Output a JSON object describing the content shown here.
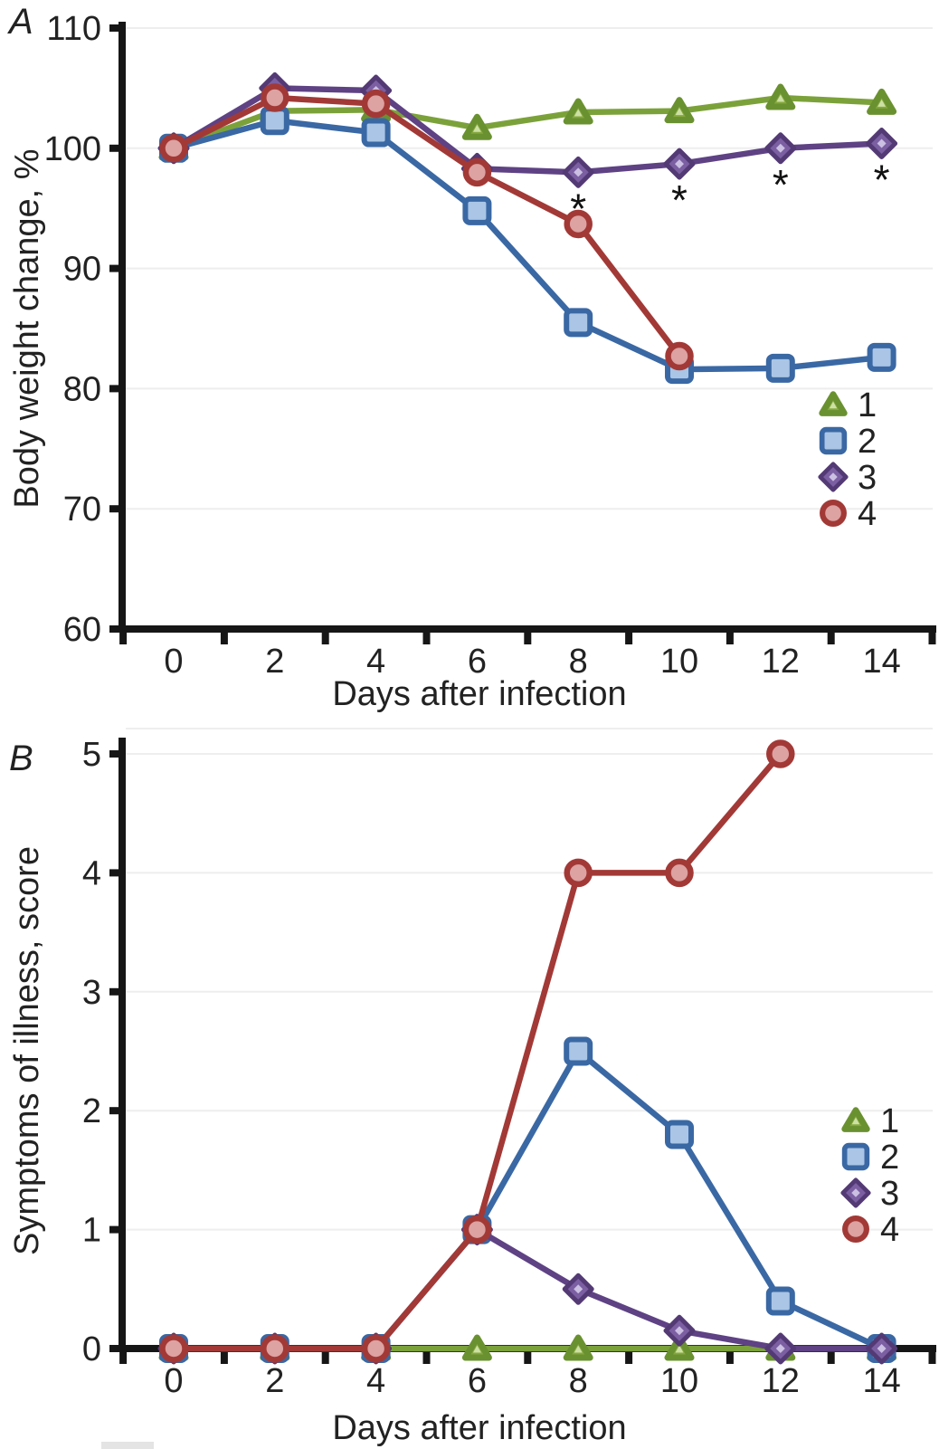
{
  "palette": {
    "green_line": "#7ba23a",
    "green_fill": "#85a83e",
    "green_stroke": "#6a9130",
    "green_center": "#cde0a4",
    "blue_line": "#3a68a4",
    "blue_fill": "#aac5e5",
    "purple_line": "#5e4284",
    "purple_fill": "#7b5fa2",
    "purple_stroke": "#543a75",
    "purple_center": "#cbbfe2",
    "red_line": "#a23936",
    "red_fill": "#dda2a2",
    "axis": "#161616",
    "grid": "#eeeeee",
    "text": "#222222"
  },
  "chart_data": [
    {
      "panel_label": "A",
      "type": "line",
      "x": [
        0,
        2,
        4,
        6,
        8,
        10,
        12,
        14
      ],
      "x_tick_labels": [
        "0",
        "2",
        "4",
        "6",
        "8",
        "10",
        "12",
        "14"
      ],
      "yticks": [
        60,
        70,
        80,
        90,
        100,
        110
      ],
      "y_tick_labels": [
        "60",
        "70",
        "80",
        "90",
        "100",
        "110"
      ],
      "ylim": [
        60,
        110
      ],
      "xlabel": "Days after infection",
      "ylabel": "Body weight change, %",
      "grid": "horizontal",
      "legend_position": "right-middle",
      "series": [
        {
          "name": "1",
          "marker": "triangle",
          "color": "green",
          "values": [
            100,
            103.1,
            103.2,
            101.7,
            103.0,
            103.1,
            104.2,
            103.8
          ]
        },
        {
          "name": "2",
          "marker": "square",
          "color": "blue",
          "values": [
            100,
            102.3,
            101.3,
            94.8,
            85.5,
            81.6,
            81.7,
            82.6
          ]
        },
        {
          "name": "3",
          "marker": "diamond",
          "color": "purple",
          "values": [
            100,
            105.0,
            104.8,
            98.3,
            98.0,
            98.7,
            100.0,
            100.4
          ]
        },
        {
          "name": "4",
          "marker": "circle",
          "color": "red",
          "values": [
            100,
            104.2,
            103.7,
            98.0,
            93.7,
            82.7,
            null,
            null
          ]
        }
      ],
      "asterisk_symbol": "*",
      "asterisk_days": [
        8,
        10,
        12,
        14
      ],
      "asterisk_below_series": "3"
    },
    {
      "panel_label": "B",
      "type": "line",
      "x": [
        0,
        2,
        4,
        6,
        8,
        10,
        12,
        14
      ],
      "x_tick_labels": [
        "0",
        "2",
        "4",
        "6",
        "8",
        "10",
        "12",
        "14"
      ],
      "yticks": [
        0,
        1,
        2,
        3,
        4,
        5
      ],
      "y_tick_labels": [
        "0",
        "1",
        "2",
        "3",
        "4",
        "5"
      ],
      "ylim": [
        0,
        5
      ],
      "xlabel": "Days after infection",
      "ylabel": "Symptoms of illness, score",
      "grid": "horizontal",
      "legend_position": "right-middle",
      "series": [
        {
          "name": "1",
          "marker": "triangle",
          "color": "green",
          "values": [
            0,
            0,
            0,
            0,
            0,
            0,
            0,
            0
          ]
        },
        {
          "name": "2",
          "marker": "square",
          "color": "blue",
          "values": [
            0,
            0,
            0,
            1,
            2.5,
            1.8,
            0.4,
            0
          ]
        },
        {
          "name": "3",
          "marker": "diamond",
          "color": "purple",
          "values": [
            0,
            0,
            0,
            1,
            0.5,
            0.15,
            0,
            0
          ]
        },
        {
          "name": "4",
          "marker": "circle",
          "color": "red",
          "values": [
            0,
            0,
            0,
            1,
            4,
            4,
            5,
            null
          ]
        }
      ],
      "asterisk_symbol": "*",
      "asterisk_days": []
    }
  ]
}
